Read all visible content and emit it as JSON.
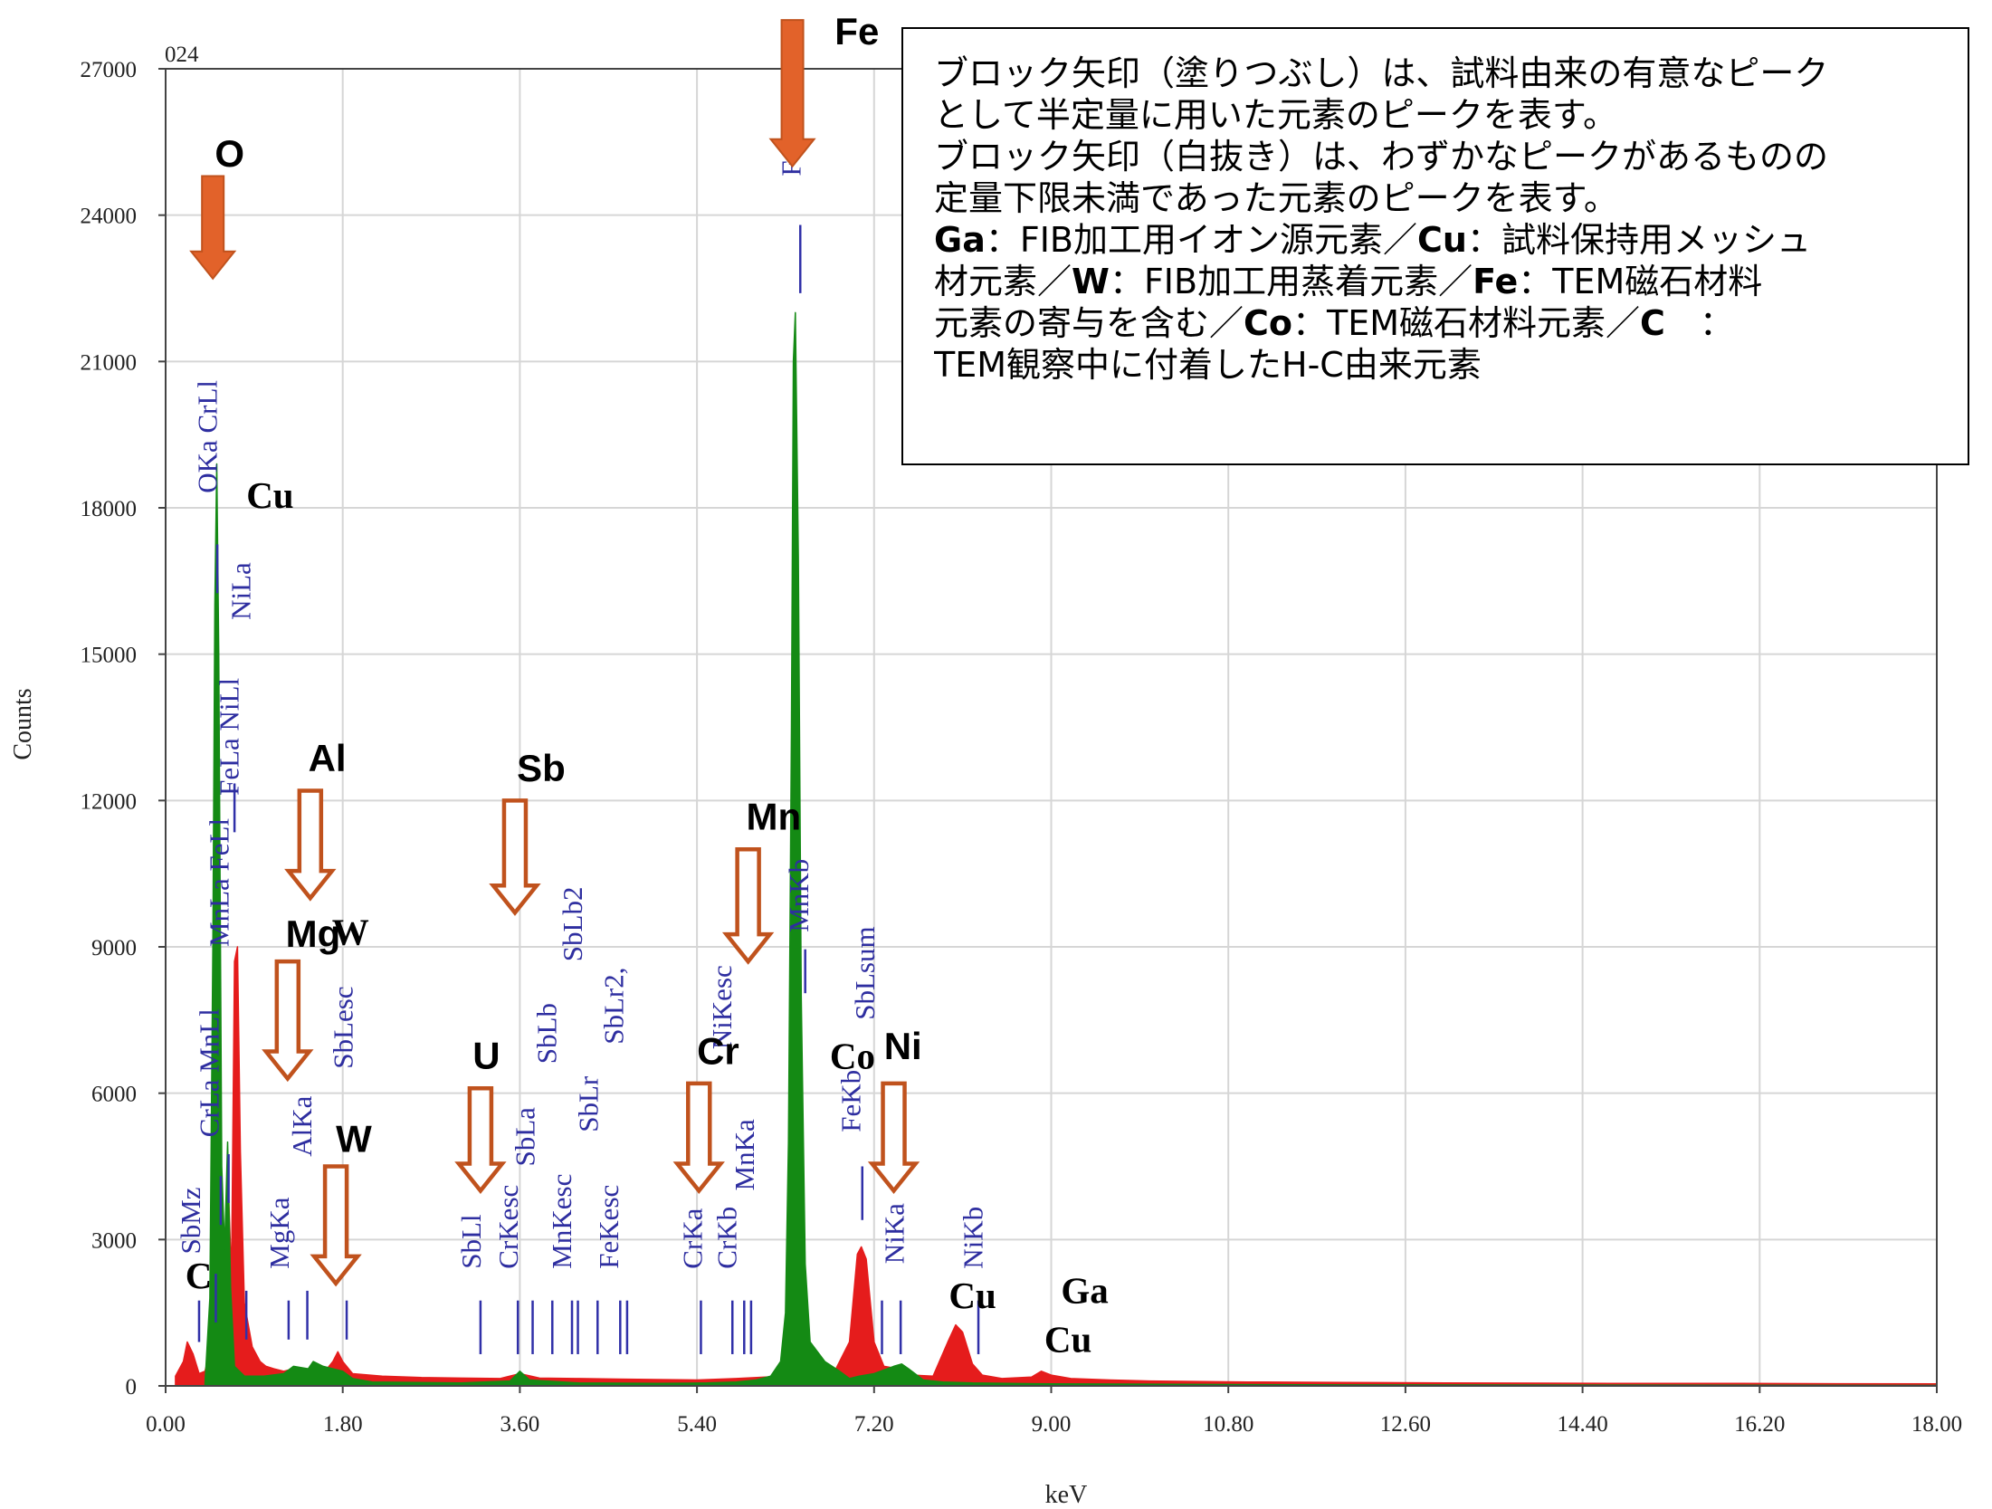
{
  "chart_data": {
    "type": "line",
    "corner_label": "024",
    "xlabel": "keV",
    "ylabel": "Counts",
    "xlim": [
      0,
      18
    ],
    "ylim": [
      0,
      27000
    ],
    "x_ticks": [
      "0.00",
      "1.80",
      "3.60",
      "5.40",
      "7.20",
      "9.00",
      "10.80",
      "12.60",
      "14.40",
      "16.20",
      "18.00"
    ],
    "y_ticks": [
      "0",
      "3000",
      "6000",
      "9000",
      "12000",
      "15000",
      "18000",
      "21000",
      "24000",
      "27000"
    ],
    "grid": true,
    "series": [
      {
        "color": "#e51c1c",
        "points": [
          [
            0.1,
            200
          ],
          [
            0.18,
            500
          ],
          [
            0.22,
            900
          ],
          [
            0.28,
            650
          ],
          [
            0.34,
            250
          ],
          [
            0.4,
            300
          ],
          [
            0.45,
            700
          ],
          [
            0.5,
            3600
          ],
          [
            0.53,
            4800
          ],
          [
            0.57,
            3200
          ],
          [
            0.6,
            2600
          ],
          [
            0.63,
            4500
          ],
          [
            0.67,
            2200
          ],
          [
            0.7,
            8700
          ],
          [
            0.73,
            9000
          ],
          [
            0.76,
            4800
          ],
          [
            0.8,
            1700
          ],
          [
            0.88,
            800
          ],
          [
            0.96,
            500
          ],
          [
            1.02,
            400
          ],
          [
            1.1,
            350
          ],
          [
            1.2,
            300
          ],
          [
            1.3,
            350
          ],
          [
            1.45,
            300
          ],
          [
            1.6,
            250
          ],
          [
            1.7,
            500
          ],
          [
            1.75,
            700
          ],
          [
            1.8,
            500
          ],
          [
            1.9,
            250
          ],
          [
            2.2,
            200
          ],
          [
            2.6,
            170
          ],
          [
            3.0,
            160
          ],
          [
            3.4,
            150
          ],
          [
            3.6,
            250
          ],
          [
            3.8,
            160
          ],
          [
            4.2,
            150
          ],
          [
            4.6,
            140
          ],
          [
            5.0,
            130
          ],
          [
            5.4,
            120
          ],
          [
            5.8,
            150
          ],
          [
            6.1,
            180
          ],
          [
            6.3,
            200
          ],
          [
            6.4,
            350
          ],
          [
            6.6,
            450
          ],
          [
            6.8,
            300
          ],
          [
            6.95,
            900
          ],
          [
            7.03,
            2700
          ],
          [
            7.07,
            2850
          ],
          [
            7.12,
            2600
          ],
          [
            7.2,
            900
          ],
          [
            7.3,
            400
          ],
          [
            7.45,
            350
          ],
          [
            7.6,
            220
          ],
          [
            7.8,
            200
          ],
          [
            7.95,
            900
          ],
          [
            8.03,
            1250
          ],
          [
            8.1,
            1100
          ],
          [
            8.2,
            450
          ],
          [
            8.3,
            220
          ],
          [
            8.5,
            150
          ],
          [
            8.8,
            180
          ],
          [
            8.9,
            300
          ],
          [
            9.0,
            220
          ],
          [
            9.2,
            150
          ],
          [
            9.6,
            120
          ],
          [
            10.0,
            100
          ],
          [
            11.0,
            80
          ],
          [
            12.0,
            70
          ],
          [
            13.0,
            60
          ],
          [
            14.0,
            55
          ],
          [
            15.0,
            50
          ],
          [
            16.0,
            50
          ],
          [
            17.0,
            45
          ],
          [
            18.0,
            40
          ]
        ]
      },
      {
        "color": "#148a14",
        "points": [
          [
            0.4,
            50
          ],
          [
            0.45,
            1800
          ],
          [
            0.48,
            9000
          ],
          [
            0.5,
            16000
          ],
          [
            0.52,
            18900
          ],
          [
            0.54,
            15000
          ],
          [
            0.57,
            4500
          ],
          [
            0.6,
            2800
          ],
          [
            0.63,
            5000
          ],
          [
            0.66,
            2000
          ],
          [
            0.7,
            400
          ],
          [
            0.8,
            200
          ],
          [
            1.0,
            200
          ],
          [
            1.2,
            250
          ],
          [
            1.3,
            400
          ],
          [
            1.45,
            350
          ],
          [
            1.5,
            500
          ],
          [
            1.6,
            400
          ],
          [
            1.7,
            350
          ],
          [
            1.8,
            300
          ],
          [
            1.9,
            150
          ],
          [
            2.1,
            80
          ],
          [
            3.0,
            60
          ],
          [
            3.5,
            100
          ],
          [
            3.6,
            300
          ],
          [
            3.7,
            120
          ],
          [
            4.2,
            60
          ],
          [
            5.0,
            50
          ],
          [
            5.5,
            60
          ],
          [
            5.8,
            80
          ],
          [
            6.0,
            120
          ],
          [
            6.15,
            200
          ],
          [
            6.25,
            500
          ],
          [
            6.3,
            1500
          ],
          [
            6.33,
            5000
          ],
          [
            6.36,
            13500
          ],
          [
            6.38,
            21000
          ],
          [
            6.4,
            22000
          ],
          [
            6.43,
            17000
          ],
          [
            6.46,
            8000
          ],
          [
            6.5,
            2500
          ],
          [
            6.55,
            900
          ],
          [
            6.7,
            500
          ],
          [
            6.85,
            300
          ],
          [
            6.95,
            150
          ],
          [
            7.05,
            200
          ],
          [
            7.2,
            250
          ],
          [
            7.4,
            400
          ],
          [
            7.48,
            450
          ],
          [
            7.55,
            350
          ],
          [
            7.7,
            120
          ],
          [
            7.9,
            80
          ],
          [
            8.2,
            60
          ],
          [
            9.0,
            40
          ],
          [
            12.0,
            20
          ],
          [
            18.0,
            10
          ]
        ]
      }
    ],
    "peak_labels": [
      {
        "text": "SbMz",
        "x": 0.35,
        "y": 2700
      },
      {
        "text": "OKa CrLl",
        "x": 0.52,
        "y": 18300
      },
      {
        "text": "NiLa",
        "x": 0.86,
        "y": 15700
      },
      {
        "text": "FeLa NiLl",
        "x": 0.74,
        "y": 12100
      },
      {
        "text": "MnLa FeLl",
        "x": 0.64,
        "y": 9000
      },
      {
        "text": "CrLa MnLl",
        "x": 0.54,
        "y": 5100
      },
      {
        "text": "MgKa",
        "x": 1.25,
        "y": 2400
      },
      {
        "text": "AlKa",
        "x": 1.48,
        "y": 4700
      },
      {
        "text": "SbLesc",
        "x": 1.9,
        "y": 6500
      },
      {
        "text": "SbLl",
        "x": 3.2,
        "y": 2400
      },
      {
        "text": "CrKesc",
        "x": 3.58,
        "y": 2400
      },
      {
        "text": "SbLa",
        "x": 3.75,
        "y": 4500
      },
      {
        "text": "SbLb",
        "x": 3.97,
        "y": 6600
      },
      {
        "text": "SbLb2",
        "x": 4.23,
        "y": 8700
      },
      {
        "text": "MnKesc",
        "x": 4.12,
        "y": 2400
      },
      {
        "text": "SbLr",
        "x": 4.39,
        "y": 5200
      },
      {
        "text": "SbLr2,",
        "x": 4.65,
        "y": 7000
      },
      {
        "text": "FeKesc",
        "x": 4.6,
        "y": 2400
      },
      {
        "text": "CrKa",
        "x": 5.45,
        "y": 2400
      },
      {
        "text": "NiKesc",
        "x": 5.75,
        "y": 6900
      },
      {
        "text": "CrKb",
        "x": 5.8,
        "y": 2400
      },
      {
        "text": "MnKa",
        "x": 5.98,
        "y": 4000
      },
      {
        "text": "MnKb",
        "x": 6.53,
        "y": 9300
      },
      {
        "text": "FeKa",
        "x": 6.45,
        "y": 24800
      },
      {
        "text": "FeKb",
        "x": 7.06,
        "y": 5200
      },
      {
        "text": "SbLsum",
        "x": 7.2,
        "y": 7500
      },
      {
        "text": "NiKa",
        "x": 7.5,
        "y": 2500
      },
      {
        "text": "NiKb",
        "x": 8.3,
        "y": 2400
      }
    ],
    "marker_lines": [
      [
        0.34,
        1750,
        900
      ],
      [
        0.51,
        2300,
        1300
      ],
      [
        0.525,
        17250,
        16250
      ],
      [
        0.56,
        4300,
        3300
      ],
      [
        0.64,
        4750,
        3750
      ],
      [
        0.7,
        12350,
        11350
      ],
      [
        0.82,
        1950,
        950
      ],
      [
        1.25,
        1750,
        950
      ],
      [
        1.44,
        1950,
        950
      ],
      [
        1.84,
        1750,
        950
      ],
      [
        3.2,
        1750,
        650
      ],
      [
        3.58,
        1750,
        650
      ],
      [
        3.73,
        1750,
        650
      ],
      [
        3.93,
        1750,
        650
      ],
      [
        4.13,
        1750,
        650
      ],
      [
        4.19,
        1750,
        650
      ],
      [
        4.39,
        1750,
        650
      ],
      [
        4.62,
        1750,
        650
      ],
      [
        4.69,
        1750,
        650
      ],
      [
        5.44,
        1750,
        650
      ],
      [
        5.76,
        1750,
        650
      ],
      [
        5.88,
        1750,
        650
      ],
      [
        5.95,
        1750,
        650
      ],
      [
        6.45,
        23800,
        22400
      ],
      [
        6.5,
        8950,
        8050
      ],
      [
        7.08,
        4500,
        3400
      ],
      [
        7.28,
        1750,
        650
      ],
      [
        7.47,
        1750,
        650
      ],
      [
        8.26,
        1750,
        650
      ]
    ],
    "element_labels": [
      {
        "text": "O",
        "x": 0.5,
        "y": 25000,
        "style": "sans"
      },
      {
        "text": "Fe",
        "x": 6.8,
        "y": 27500,
        "style": "sans"
      },
      {
        "text": "Cu",
        "x": 0.82,
        "y": 18000,
        "style": "serif"
      },
      {
        "text": "Al",
        "x": 1.45,
        "y": 12600,
        "style": "sans"
      },
      {
        "text": "Sb",
        "x": 3.57,
        "y": 12400,
        "style": "sans"
      },
      {
        "text": "Mn",
        "x": 5.9,
        "y": 11400,
        "style": "sans"
      },
      {
        "text": "Mg",
        "x": 1.22,
        "y": 9000,
        "style": "sans"
      },
      {
        "text": "W",
        "x": 1.69,
        "y": 9050,
        "style": "serif"
      },
      {
        "text": "U",
        "x": 3.12,
        "y": 6500,
        "style": "sans"
      },
      {
        "text": "Cr",
        "x": 5.4,
        "y": 6600,
        "style": "sans"
      },
      {
        "text": "Co",
        "x": 6.75,
        "y": 6500,
        "style": "serif"
      },
      {
        "text": "Ni",
        "x": 7.3,
        "y": 6700,
        "style": "sans"
      },
      {
        "text": "W",
        "x": 1.73,
        "y": 4800,
        "style": "sans"
      },
      {
        "text": "C",
        "x": 0.2,
        "y": 2000,
        "style": "serif"
      },
      {
        "text": "Cu",
        "x": 7.96,
        "y": 1600,
        "style": "serif"
      },
      {
        "text": "Ga",
        "x": 9.1,
        "y": 1700,
        "style": "serif"
      },
      {
        "text": "Cu",
        "x": 8.93,
        "y": 700,
        "style": "serif"
      }
    ],
    "arrows": [
      {
        "element": "O",
        "style": "filled",
        "x": 0.48,
        "y_top": 24800,
        "y_tip": 22700
      },
      {
        "element": "Fe",
        "style": "filled",
        "x": 6.37,
        "y_top": 28000,
        "y_tip": 25000
      },
      {
        "element": "Al",
        "style": "outline",
        "x": 1.47,
        "y_top": 12200,
        "y_tip": 10000
      },
      {
        "element": "Sb",
        "style": "outline",
        "x": 3.55,
        "y_top": 12000,
        "y_tip": 9700
      },
      {
        "element": "Mn",
        "style": "outline",
        "x": 5.92,
        "y_top": 11000,
        "y_tip": 8700
      },
      {
        "element": "Mg",
        "style": "outline",
        "x": 1.24,
        "y_top": 8700,
        "y_tip": 6300
      },
      {
        "element": "U",
        "style": "outline",
        "x": 3.2,
        "y_top": 6100,
        "y_tip": 4000
      },
      {
        "element": "Cr",
        "style": "outline",
        "x": 5.42,
        "y_top": 6200,
        "y_tip": 4000
      },
      {
        "element": "Ni",
        "style": "outline",
        "x": 7.4,
        "y_top": 6200,
        "y_tip": 4000
      },
      {
        "element": "W",
        "style": "outline",
        "x": 1.73,
        "y_top": 4500,
        "y_tip": 2100
      }
    ],
    "arrow_colors": {
      "fill": "#e2622a",
      "stroke": "#c0521d"
    }
  },
  "note": {
    "line1": "ブロック矢印（塗りつぶし）は、試料由来の有意なピーク",
    "line2": "として半定量に用いた元素のピークを表す。",
    "line3": "ブロック矢印（白抜き）は、わずかなピークがあるものの",
    "line4": "定量下限未満であった元素のピークを表す。",
    "line5_ga": "Ga",
    "line5_a": "：FIB加工用イオン源元素／",
    "line5_cu": "Cu",
    "line5_b": "：試料保持用メッシュ",
    "line6_a": "材元素／",
    "line6_w": "W",
    "line6_b": "：FIB加工用蒸着元素／",
    "line6_fe": "Fe",
    "line6_c": "：TEM磁石材料",
    "line7_a": "元素の寄与を含む／",
    "line7_co": "Co",
    "line7_b": "：TEM磁石材料元素／",
    "line7_c": "C",
    "line7_d": "　：",
    "line8": "TEM観察中に付着したH-C由来元素"
  }
}
